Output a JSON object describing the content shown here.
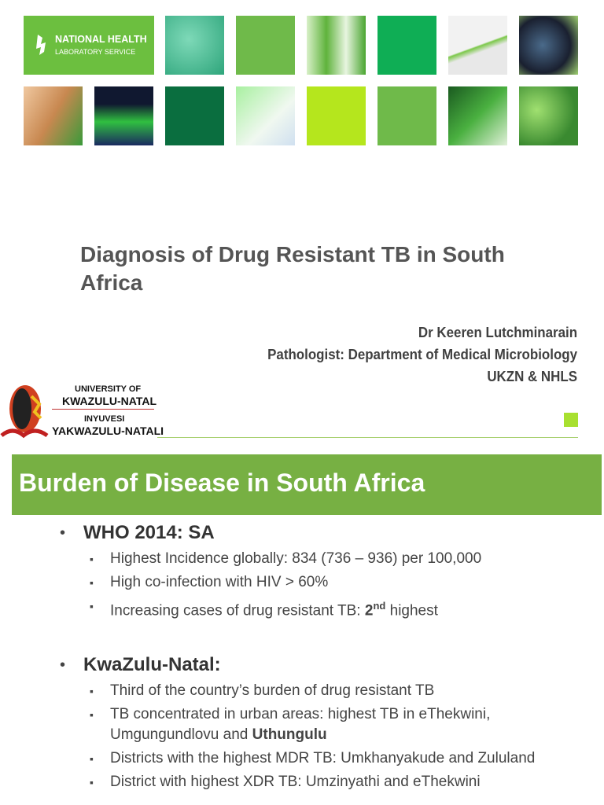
{
  "title_slide": {
    "nhls_logo": {
      "line1": "NATIONAL HEALTH",
      "line2": "LABORATORY SERVICE"
    },
    "title": "Diagnosis of Drug Resistant TB in South Africa",
    "presenter": [
      "Dr Keeren Lutchminarain",
      "Pathologist: Department of Medical Microbiology",
      "UKZN & NHLS"
    ],
    "ukzn_logo": {
      "line1": "UNIVERSITY OF",
      "line2": "KWAZULU-NATAL",
      "line3": "INYUVESI",
      "line4": "YAKWAZULU-NATALI"
    }
  },
  "content_slide": {
    "title": "Burden of Disease in South Africa",
    "bullets": [
      {
        "text": "WHO 2014: SA",
        "sub": [
          {
            "parts": [
              {
                "text": "Highest Incidence globally: 834 (736 – 936) per 100,000"
              }
            ]
          },
          {
            "parts": [
              {
                "text": "High co-infection with HIV > 60%"
              }
            ]
          },
          {
            "parts": [
              {
                "text": "Increasing cases of drug resistant TB: "
              },
              {
                "text": "2",
                "bold": true
              },
              {
                "text": "nd",
                "bold": true,
                "sup": true
              },
              {
                "text": " highest"
              }
            ]
          }
        ]
      },
      {
        "text": "KwaZulu-Natal:",
        "sub": [
          {
            "parts": [
              {
                "text": "Third of the country’s burden of drug resistant TB"
              }
            ]
          },
          {
            "parts": [
              {
                "text": "TB concentrated in urban areas: highest TB in eThekwini, Umgungundlovu and "
              },
              {
                "text": "Uthungulu",
                "bold": true
              }
            ]
          },
          {
            "parts": [
              {
                "text": "Districts with the highest MDR TB: Umkhanyakude and Zululand"
              }
            ]
          },
          {
            "parts": [
              {
                "text": "District with highest XDR TB: Umzinyathi and eThekwini"
              }
            ]
          }
        ]
      }
    ]
  }
}
